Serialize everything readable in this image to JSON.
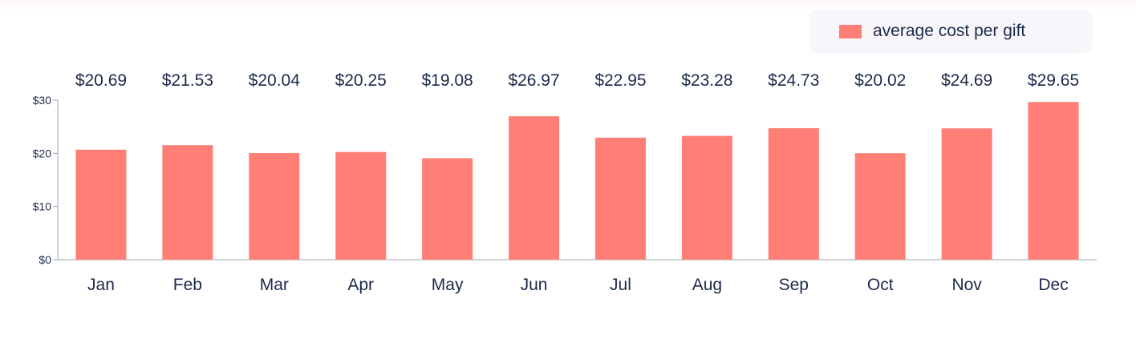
{
  "chart_data": {
    "type": "bar",
    "title": "",
    "xlabel": "",
    "ylabel": "",
    "categories": [
      "Jan",
      "Feb",
      "Mar",
      "Apr",
      "May",
      "Jun",
      "Jul",
      "Aug",
      "Sep",
      "Oct",
      "Nov",
      "Dec"
    ],
    "series": [
      {
        "name": "average cost per gift",
        "values": [
          20.69,
          21.53,
          20.04,
          20.25,
          19.08,
          26.97,
          22.95,
          23.28,
          24.73,
          20.02,
          24.69,
          29.65
        ],
        "value_labels": [
          "$20.69",
          "$21.53",
          "$20.04",
          "$20.25",
          "$19.08",
          "$26.97",
          "$22.95",
          "$23.28",
          "$24.73",
          "$20.02",
          "$24.69",
          "$29.65"
        ],
        "color": "#ff7e76"
      }
    ],
    "ylim": [
      0,
      30
    ],
    "yticks": [
      0,
      10,
      20,
      30
    ],
    "ytick_labels": [
      "$0",
      "$10",
      "$20",
      "$30"
    ],
    "grid": false,
    "legend_position": "top-right"
  },
  "colors": {
    "bar": "#ff7e76",
    "text": "#1b2a4a",
    "axis": "#9aa3b2",
    "legend_bg": "#f8f6fb"
  }
}
